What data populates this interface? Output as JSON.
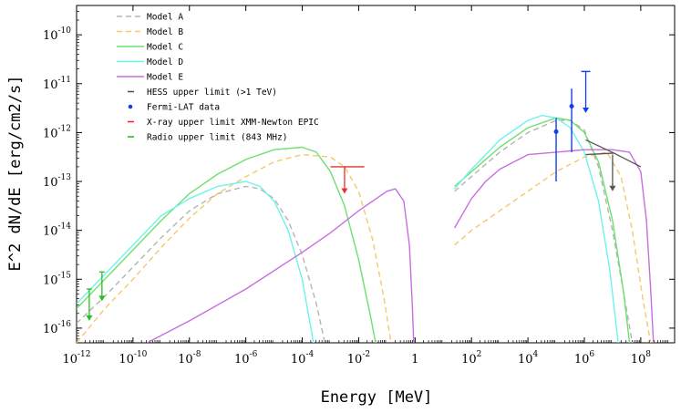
{
  "chart_data": {
    "type": "line",
    "xscale": "log",
    "yscale": "log",
    "xlabel": "Energy [MeV]",
    "ylabel": "E^2 dN/dE [erg/cm2/s]",
    "xlim_log10": [
      -12,
      9.2
    ],
    "ylim_log10": [
      -16.3,
      -9.4
    ],
    "x_ticks": [
      {
        "base": "10",
        "exp": "-12",
        "log": -12
      },
      {
        "base": "10",
        "exp": "-10",
        "log": -10
      },
      {
        "base": "10",
        "exp": "-8",
        "log": -8
      },
      {
        "base": "10",
        "exp": "-6",
        "log": -6
      },
      {
        "base": "10",
        "exp": "-4",
        "log": -4
      },
      {
        "base": "10",
        "exp": "-2",
        "log": -2
      },
      {
        "base": "1",
        "exp": "",
        "log": 0
      },
      {
        "base": "10",
        "exp": "2",
        "log": 2
      },
      {
        "base": "10",
        "exp": "4",
        "log": 4
      },
      {
        "base": "10",
        "exp": "6",
        "log": 6
      },
      {
        "base": "10",
        "exp": "8",
        "log": 8
      }
    ],
    "y_ticks": [
      {
        "base": "10",
        "exp": "-16",
        "log": -16
      },
      {
        "base": "10",
        "exp": "-15",
        "log": -15
      },
      {
        "base": "10",
        "exp": "-14",
        "log": -14
      },
      {
        "base": "10",
        "exp": "-13",
        "log": -13
      },
      {
        "base": "10",
        "exp": "-12",
        "log": -12
      },
      {
        "base": "10",
        "exp": "-11",
        "log": -11
      },
      {
        "base": "10",
        "exp": "-10",
        "log": -10
      }
    ],
    "series": [
      {
        "name": "Model A",
        "color": "#b4b4b4",
        "dash": "6,4",
        "segments": [
          [
            [
              -12,
              -15.9
            ],
            [
              -11,
              -15.35
            ],
            [
              -10,
              -14.75
            ],
            [
              -9,
              -14.15
            ],
            [
              -8,
              -13.6
            ],
            [
              -7,
              -13.25
            ],
            [
              -6,
              -13.1
            ],
            [
              -5.5,
              -13.15
            ],
            [
              -5,
              -13.35
            ],
            [
              -4.5,
              -13.8
            ],
            [
              -4,
              -14.5
            ],
            [
              -3.5,
              -15.5
            ],
            [
              -3.2,
              -16.3
            ]
          ],
          [
            [
              1.4,
              -13.2
            ],
            [
              2,
              -12.9
            ],
            [
              3,
              -12.4
            ],
            [
              4,
              -12.0
            ],
            [
              5,
              -11.75
            ],
            [
              5.5,
              -11.75
            ],
            [
              6,
              -11.95
            ],
            [
              6.5,
              -12.7
            ],
            [
              7,
              -14.0
            ],
            [
              7.4,
              -15.3
            ],
            [
              7.7,
              -16.3
            ]
          ]
        ]
      },
      {
        "name": "Model B",
        "color": "#f7c86a",
        "dash": "6,4",
        "segments": [
          [
            [
              -12,
              -16.3
            ],
            [
              -11,
              -15.6
            ],
            [
              -10,
              -15.0
            ],
            [
              -9,
              -14.35
            ],
            [
              -8,
              -13.75
            ],
            [
              -7,
              -13.25
            ],
            [
              -6,
              -12.9
            ],
            [
              -5,
              -12.6
            ],
            [
              -4,
              -12.45
            ],
            [
              -3,
              -12.5
            ],
            [
              -2.5,
              -12.7
            ],
            [
              -2,
              -13.2
            ],
            [
              -1.5,
              -14.2
            ],
            [
              -1.1,
              -15.4
            ],
            [
              -0.85,
              -16.3
            ]
          ],
          [
            [
              1.4,
              -14.3
            ],
            [
              2,
              -14.0
            ],
            [
              3,
              -13.6
            ],
            [
              4,
              -13.2
            ],
            [
              5,
              -12.8
            ],
            [
              6,
              -12.5
            ],
            [
              6.8,
              -12.4
            ],
            [
              7.3,
              -12.9
            ],
            [
              7.7,
              -14.0
            ],
            [
              8.1,
              -15.5
            ],
            [
              8.35,
              -16.3
            ]
          ]
        ]
      },
      {
        "name": "Model C",
        "color": "#6fe06f",
        "dash": "",
        "segments": [
          [
            [
              -12,
              -15.6
            ],
            [
              -11,
              -15.0
            ],
            [
              -10,
              -14.4
            ],
            [
              -9,
              -13.8
            ],
            [
              -8,
              -13.25
            ],
            [
              -7,
              -12.85
            ],
            [
              -6,
              -12.55
            ],
            [
              -5,
              -12.35
            ],
            [
              -4,
              -12.3
            ],
            [
              -3.5,
              -12.4
            ],
            [
              -3,
              -12.8
            ],
            [
              -2.5,
              -13.5
            ],
            [
              -2,
              -14.6
            ],
            [
              -1.6,
              -15.7
            ],
            [
              -1.4,
              -16.3
            ]
          ],
          [
            [
              1.4,
              -13.1
            ],
            [
              2,
              -12.8
            ],
            [
              3,
              -12.3
            ],
            [
              4,
              -11.9
            ],
            [
              5,
              -11.7
            ],
            [
              5.5,
              -11.75
            ],
            [
              6,
              -12.0
            ],
            [
              6.5,
              -12.6
            ],
            [
              7,
              -13.8
            ],
            [
              7.4,
              -15.3
            ],
            [
              7.6,
              -16.3
            ]
          ]
        ]
      },
      {
        "name": "Model D",
        "color": "#6ff2ee",
        "dash": "",
        "segments": [
          [
            [
              -12,
              -15.5
            ],
            [
              -11,
              -14.9
            ],
            [
              -10,
              -14.3
            ],
            [
              -9,
              -13.7
            ],
            [
              -8,
              -13.35
            ],
            [
              -7,
              -13.1
            ],
            [
              -6,
              -13.0
            ],
            [
              -5.5,
              -13.1
            ],
            [
              -5,
              -13.4
            ],
            [
              -4.5,
              -14.0
            ],
            [
              -4,
              -15.0
            ],
            [
              -3.6,
              -16.3
            ]
          ],
          [
            [
              1.4,
              -13.15
            ],
            [
              2,
              -12.75
            ],
            [
              3,
              -12.15
            ],
            [
              4,
              -11.75
            ],
            [
              4.5,
              -11.65
            ],
            [
              5,
              -11.7
            ],
            [
              5.5,
              -11.9
            ],
            [
              6,
              -12.4
            ],
            [
              6.5,
              -13.4
            ],
            [
              6.9,
              -14.8
            ],
            [
              7.2,
              -16.3
            ]
          ]
        ]
      },
      {
        "name": "Model E",
        "color": "#c86ee0",
        "dash": "",
        "segments": [
          [
            [
              -9.5,
              -16.3
            ],
            [
              -8,
              -15.85
            ],
            [
              -6,
              -15.2
            ],
            [
              -4,
              -14.45
            ],
            [
              -3,
              -14.05
            ],
            [
              -2,
              -13.6
            ],
            [
              -1,
              -13.2
            ],
            [
              -0.7,
              -13.15
            ],
            [
              -0.4,
              -13.4
            ],
            [
              -0.2,
              -14.3
            ],
            [
              -0.1,
              -15.5
            ],
            [
              -0.05,
              -16.3
            ]
          ],
          [
            [
              1.4,
              -13.95
            ],
            [
              2,
              -13.35
            ],
            [
              2.5,
              -13.0
            ],
            [
              3,
              -12.75
            ],
            [
              4,
              -12.45
            ],
            [
              5,
              -12.4
            ],
            [
              6,
              -12.35
            ],
            [
              7,
              -12.35
            ],
            [
              7.6,
              -12.4
            ],
            [
              8,
              -12.8
            ],
            [
              8.2,
              -13.8
            ],
            [
              8.35,
              -15.2
            ],
            [
              8.45,
              -16.3
            ]
          ]
        ]
      }
    ],
    "hess_upper_limit": {
      "name": "HESS  upper limit (>1 TeV)",
      "color": "#555555",
      "bowtie": [
        [
          6.05,
          -12.15
        ],
        [
          7.05,
          -12.42
        ],
        [
          8.0,
          -12.7
        ]
      ],
      "lower_edge": [
        [
          7.05,
          -12.42
        ],
        [
          6.05,
          -12.45
        ]
      ],
      "arrow": {
        "x": 7.0,
        "from": -12.45,
        "to": -13.2
      }
    },
    "fermi_lat_data": {
      "name": "Fermi-LAT data",
      "color": "#1040e8",
      "points": [
        {
          "x": 5.0,
          "y": -11.98,
          "err_low": -13.0,
          "err_high": -11.7
        },
        {
          "x": 5.55,
          "y": -11.46,
          "err_low": -12.4,
          "err_high": -11.1
        }
      ],
      "upper_limit": {
        "x": 6.05,
        "from": -10.75,
        "to": -11.6
      }
    },
    "xray_upper_limit": {
      "name": "X-ray upper limit XMM-Newton EPIC",
      "color": "#e83030",
      "bar": {
        "x_from": -3.0,
        "x_to": -1.8,
        "y": -12.7
      },
      "arrow": {
        "x": -2.5,
        "from": -12.7,
        "to": -13.25
      }
    },
    "radio_upper_limit": {
      "name": "Radio upper limit (843 MHz)",
      "color": "#22c022",
      "arrows": [
        {
          "x": -11.55,
          "from": -15.2,
          "to": -15.85
        },
        {
          "x": -11.1,
          "from": -14.85,
          "to": -15.45
        }
      ]
    }
  }
}
